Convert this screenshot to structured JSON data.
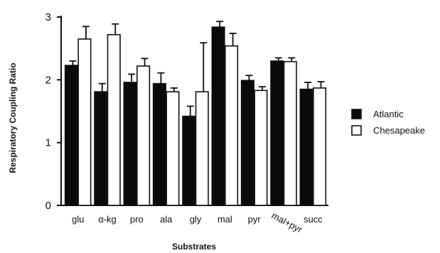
{
  "chart_data": {
    "type": "bar",
    "title": "",
    "xlabel": "Substrates",
    "ylabel": "Respiratory Coupling Ratio",
    "ylim": [
      0,
      3
    ],
    "yticks": [
      "0",
      "1",
      "2",
      "3"
    ],
    "grid": false,
    "legend_position": "right",
    "categories": [
      "glu",
      "α-kg",
      "pro",
      "ala",
      "gly",
      "mal",
      "pyr",
      "mal+pyr",
      "succ"
    ],
    "series": [
      {
        "name": "Atlantic",
        "color": "#0a0a0a",
        "values": [
          2.23,
          1.81,
          1.96,
          1.94,
          1.42,
          2.84,
          1.99,
          2.3,
          1.85
        ],
        "errors": [
          0.07,
          0.13,
          0.13,
          0.17,
          0.16,
          0.09,
          0.08,
          0.05,
          0.11
        ]
      },
      {
        "name": "Chesapeake",
        "color": "#ffffff",
        "values": [
          2.65,
          2.72,
          2.22,
          1.81,
          1.81,
          2.54,
          1.83,
          2.29,
          1.87
        ],
        "errors": [
          0.2,
          0.17,
          0.12,
          0.06,
          0.78,
          0.2,
          0.06,
          0.06,
          0.1
        ]
      }
    ]
  }
}
